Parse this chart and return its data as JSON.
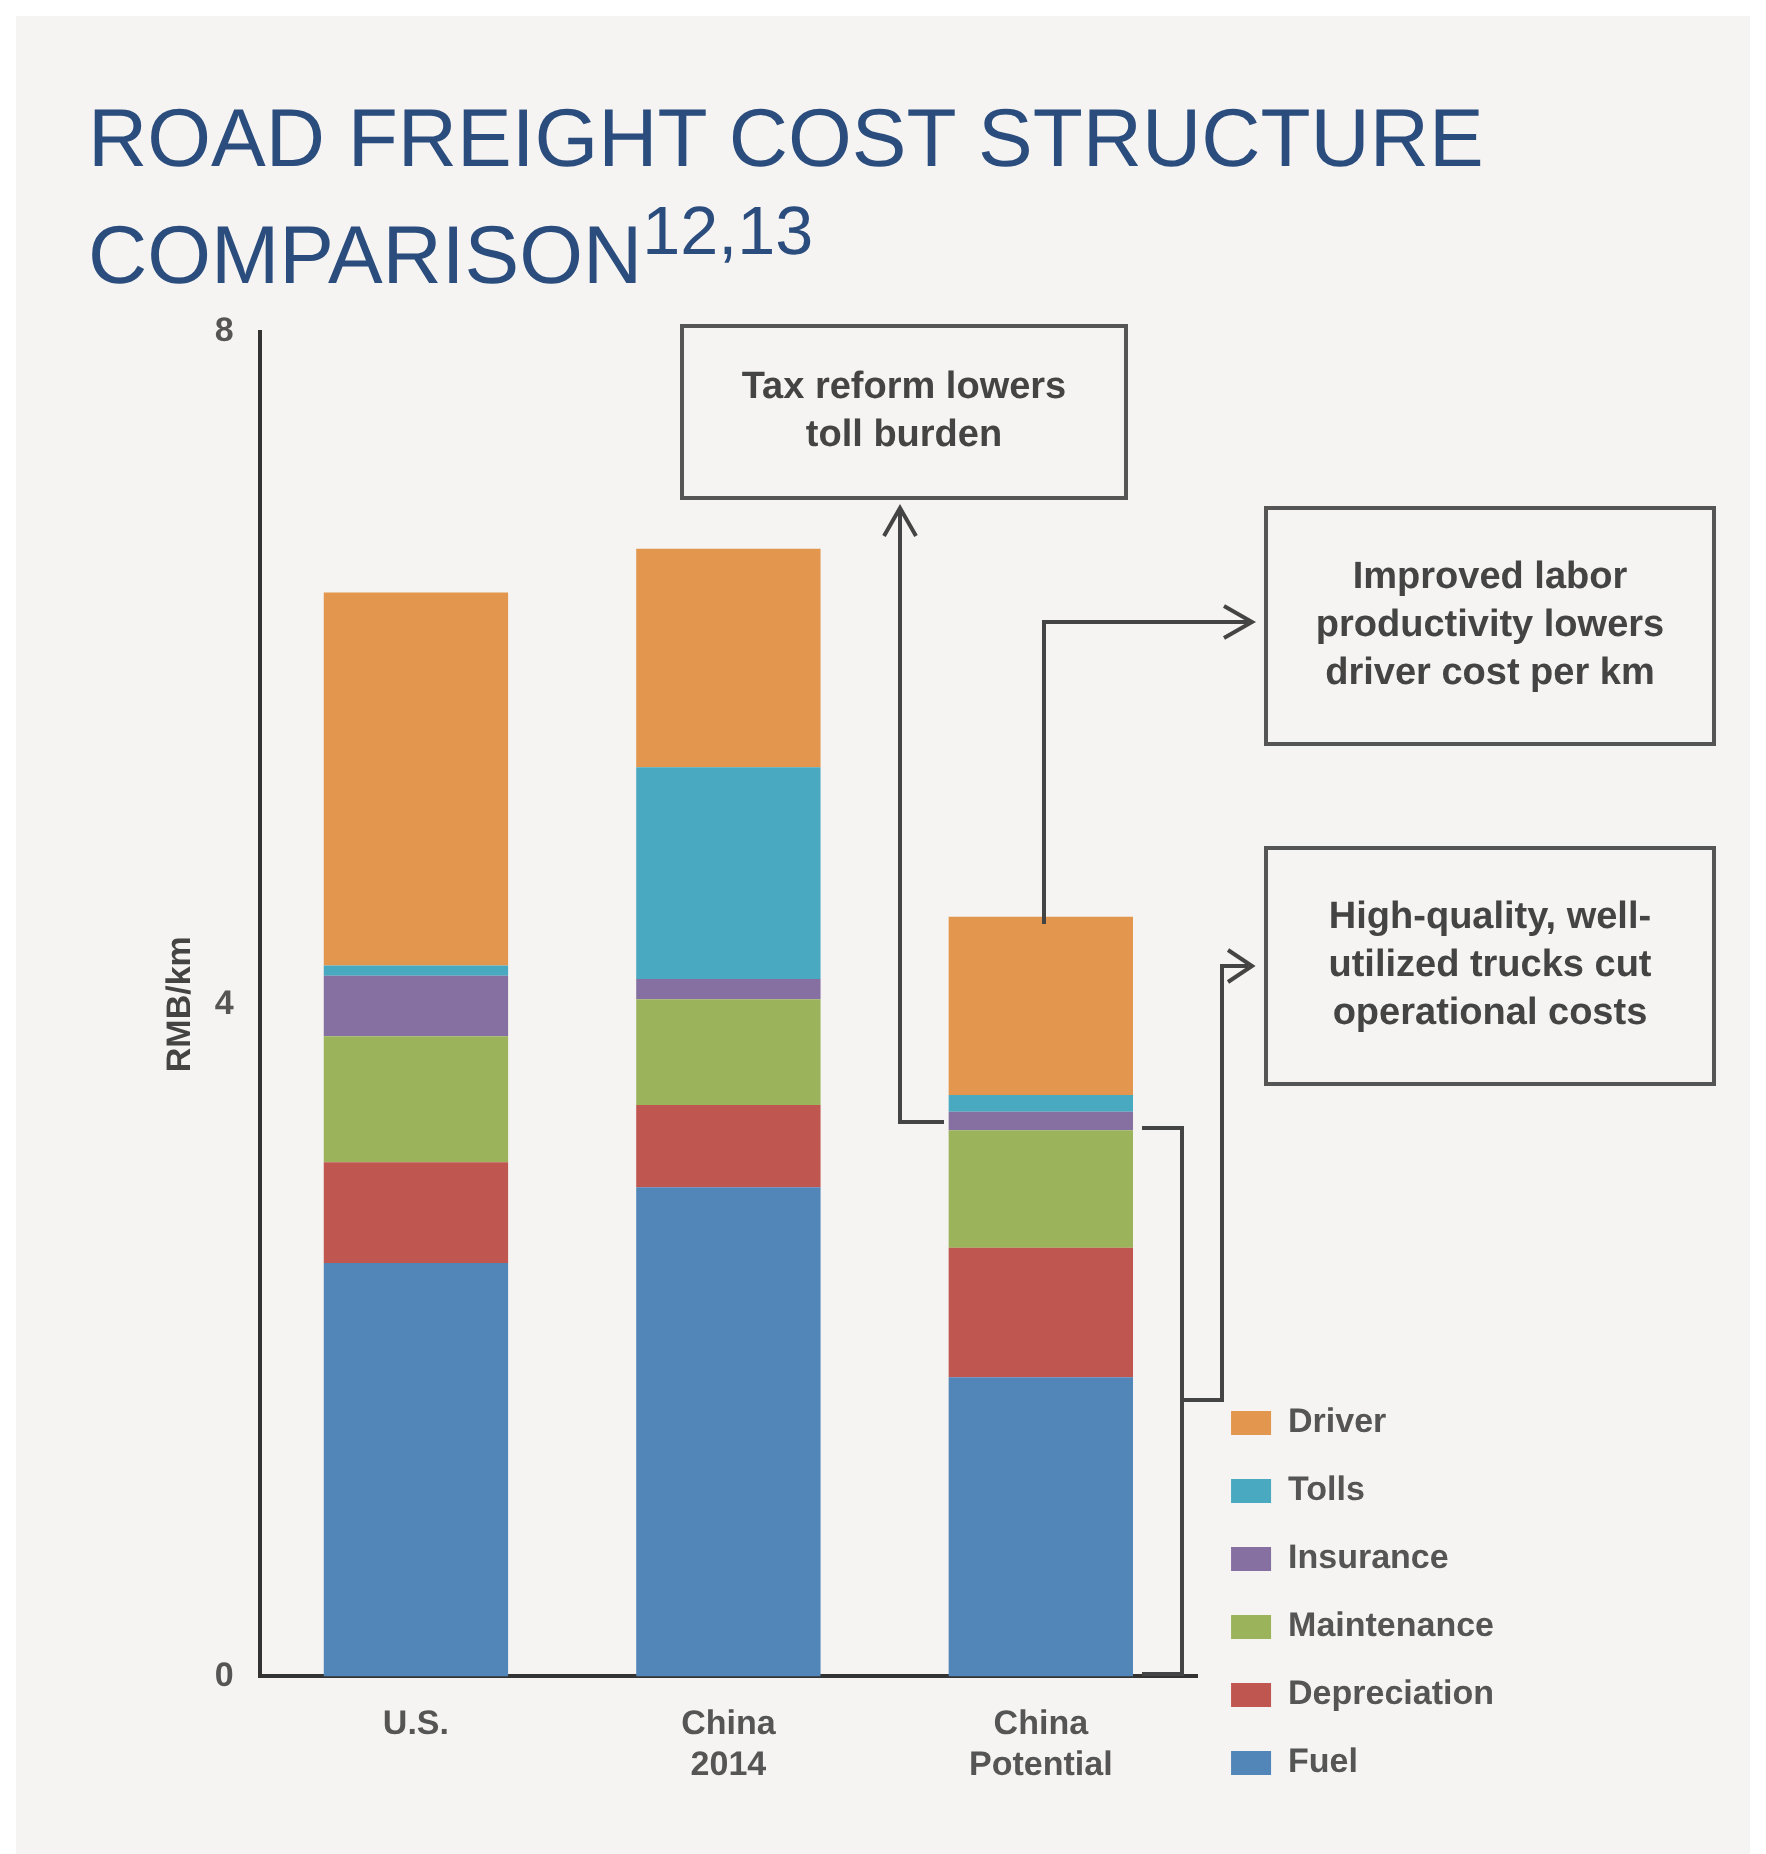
{
  "chart_data": {
    "type": "bar",
    "title": "ROAD FREIGHT COST STRUCTURE COMPARISON$^{12,13}$",
    "ylabel": "RMB/km",
    "categories": [
      "U.S.",
      "China 2014",
      "China Potential"
    ],
    "stacked": true,
    "ylim": [
      0,
      8
    ],
    "yticks": [
      0,
      4,
      8
    ],
    "grid": false,
    "legend": "bottom right",
    "series": [
      {
        "name": "Fuel",
        "color": "#5285b8",
        "values": [
          2.46,
          2.91,
          1.78
        ]
      },
      {
        "name": "Depreciation",
        "color": "#bf5650",
        "values": [
          0.6,
          0.49,
          0.77
        ]
      },
      {
        "name": "Maintenance",
        "color": "#9bb45c",
        "values": [
          0.75,
          0.63,
          0.7
        ]
      },
      {
        "name": "Insurance",
        "color": "#8670a2",
        "values": [
          0.36,
          0.12,
          0.11
        ]
      },
      {
        "name": "Tolls",
        "color": "#48a9c0",
        "values": [
          0.06,
          1.26,
          0.1
        ]
      },
      {
        "name": "Driver",
        "color": "#e3964d",
        "values": [
          2.22,
          1.3,
          1.06
        ]
      }
    ],
    "annotations": [
      "Tax reform lowers toll burden",
      "Improved labor productivity lowers driver cost per km",
      "High-quality, well-utilized trucks cut operational costs"
    ]
  }
}
